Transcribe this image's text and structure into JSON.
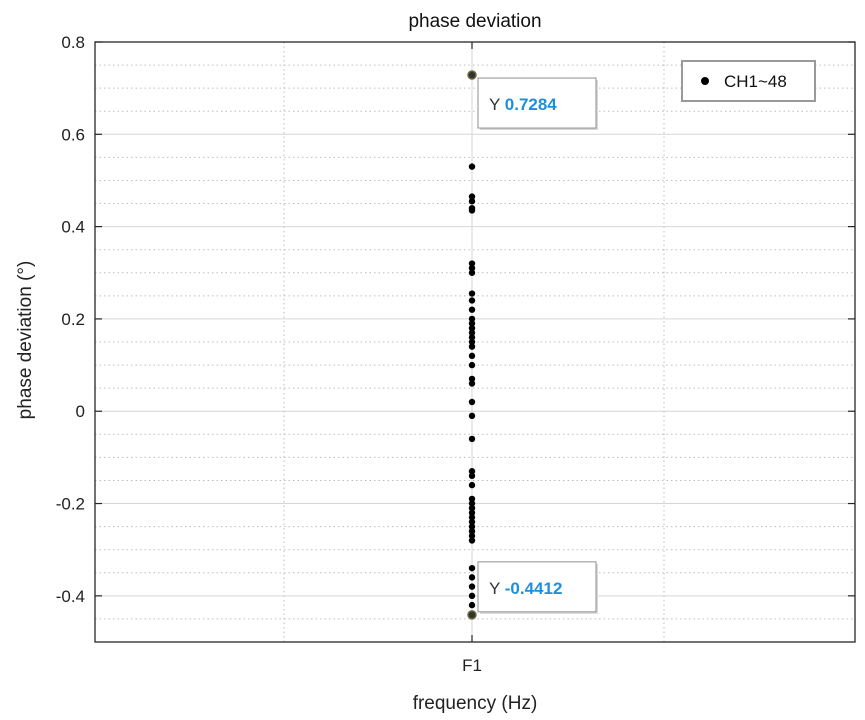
{
  "chart_data": {
    "type": "scatter",
    "title": "phase deviation",
    "xlabel": "frequency (Hz)",
    "ylabel": "phase deviation (°)",
    "categories": [
      "F1"
    ],
    "ylim": [
      -0.5,
      0.8
    ],
    "yticks": [
      -0.4,
      -0.2,
      0,
      0.2,
      0.4,
      0.6,
      0.8
    ],
    "ytick_labels": [
      "-0.4",
      "-0.2",
      "0",
      "0.2",
      "0.4",
      "0.6",
      "0.8"
    ],
    "grid": true,
    "minor_grid": true,
    "legend": {
      "placement": "top-right",
      "entries": [
        "CH1~48"
      ]
    },
    "series": [
      {
        "name": "CH1~48",
        "color": "#000000",
        "x": "F1",
        "values": [
          0.7284,
          0.53,
          0.465,
          0.455,
          0.44,
          0.435,
          0.32,
          0.31,
          0.3,
          0.255,
          0.24,
          0.22,
          0.2,
          0.19,
          0.18,
          0.17,
          0.16,
          0.15,
          0.14,
          0.12,
          0.1,
          0.07,
          0.06,
          0.02,
          -0.01,
          -0.06,
          -0.13,
          -0.14,
          -0.16,
          -0.19,
          -0.2,
          -0.21,
          -0.22,
          -0.23,
          -0.24,
          -0.25,
          -0.26,
          -0.27,
          -0.28,
          -0.34,
          -0.36,
          -0.38,
          -0.4,
          -0.42,
          -0.4412
        ]
      }
    ],
    "datatips": [
      {
        "prefix": "Y",
        "value": "0.7284",
        "y": 0.7284
      },
      {
        "prefix": "Y",
        "value": "-0.4412",
        "y": -0.4412
      }
    ]
  }
}
